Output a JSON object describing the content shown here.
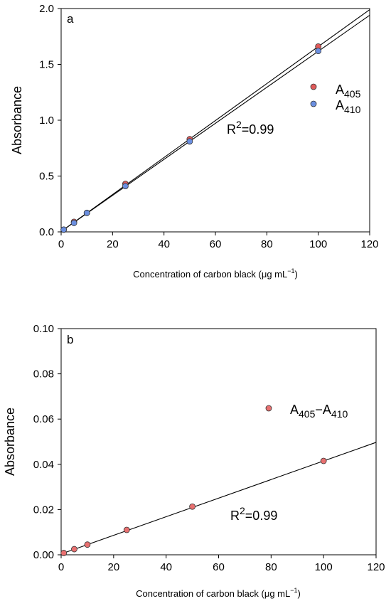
{
  "chart_data": [
    {
      "type": "scatter",
      "panel_label": "a",
      "xlabel_main": "Concentration of carbon black (",
      "xlabel_mu": "μ",
      "xlabel_unit": "g mL",
      "xlabel_exp": "−1",
      "xlabel_close": ")",
      "ylabel": "Absorbance",
      "xlim": [
        0,
        120
      ],
      "ylim": [
        0,
        2.0
      ],
      "xticks": [
        0,
        20,
        40,
        60,
        80,
        100,
        120
      ],
      "yticks": [
        0.0,
        0.5,
        1.0,
        1.5,
        2.0
      ],
      "ytick_labels": [
        "0.0",
        "0.5",
        "1.0",
        "1.5",
        "2.0"
      ],
      "grid": false,
      "legend_position": "right",
      "series": [
        {
          "name_base": "A",
          "name_sub": "405",
          "color": "#e05a5a",
          "x": [
            1,
            5,
            10,
            25,
            50,
            100
          ],
          "y": [
            0.02,
            0.09,
            0.17,
            0.43,
            0.83,
            1.66
          ],
          "fit_end": [
            120,
            1.99
          ]
        },
        {
          "name_base": "A",
          "name_sub": "410",
          "color": "#6b8fe0",
          "x": [
            1,
            5,
            10,
            25,
            50,
            100
          ],
          "y": [
            0.02,
            0.08,
            0.17,
            0.41,
            0.81,
            1.62
          ],
          "fit_end": [
            120,
            1.94
          ]
        }
      ],
      "annotation_base": "R",
      "annotation_sup": "2",
      "annotation_rest": "=0.99"
    },
    {
      "type": "scatter",
      "panel_label": "b",
      "xlabel_main": "Concentration of carbon black (",
      "xlabel_mu": "μ",
      "xlabel_unit": "g mL",
      "xlabel_exp": "−1",
      "xlabel_close": ")",
      "ylabel": "Absorbance",
      "xlim": [
        0,
        120
      ],
      "ylim": [
        0,
        0.1
      ],
      "xticks": [
        0,
        20,
        40,
        60,
        80,
        100,
        120
      ],
      "yticks": [
        0.0,
        0.02,
        0.04,
        0.06,
        0.08,
        0.1
      ],
      "ytick_labels": [
        "0.00",
        "0.02",
        "0.04",
        "0.06",
        "0.08",
        "0.10"
      ],
      "grid": false,
      "legend_position": "right",
      "series": [
        {
          "name_base": "A",
          "name_sub1": "405",
          "name_dash": "−A",
          "name_sub2": "410",
          "color": "#e87070",
          "x": [
            1,
            5,
            10,
            25,
            50,
            100
          ],
          "y": [
            0.0008,
            0.0025,
            0.0045,
            0.011,
            0.0213,
            0.0415
          ],
          "fit_end": [
            120,
            0.0497
          ]
        }
      ],
      "annotation_base": "R",
      "annotation_sup": "2",
      "annotation_rest": "=0.99"
    }
  ]
}
